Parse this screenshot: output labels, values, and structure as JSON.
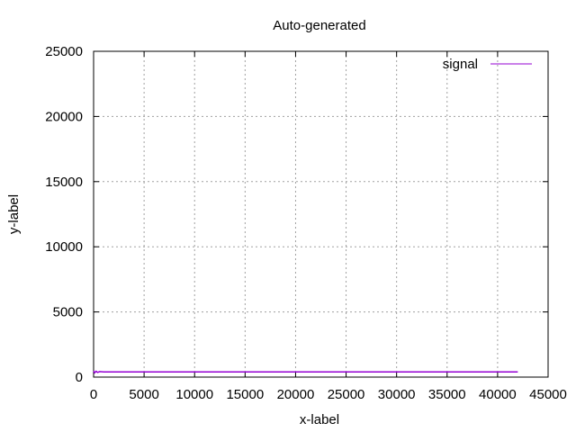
{
  "chart_data": {
    "type": "line",
    "title": "Auto-generated",
    "xlabel": "x-label",
    "ylabel": "y-label",
    "xlim": [
      0,
      45000
    ],
    "ylim": [
      0,
      25000
    ],
    "xticks": [
      0,
      5000,
      10000,
      15000,
      20000,
      25000,
      30000,
      35000,
      40000,
      45000
    ],
    "yticks": [
      0,
      5000,
      10000,
      15000,
      20000,
      25000
    ],
    "grid": true,
    "legend": "top-right",
    "series": [
      {
        "name": "signal",
        "color": "#9400d3",
        "x": [
          0,
          100,
          250,
          400,
          600,
          1000,
          2000,
          5000,
          10000,
          15000,
          20000,
          25000,
          30000,
          35000,
          40000,
          42000
        ],
        "y": [
          480,
          330,
          450,
          360,
          420,
          400,
          400,
          400,
          400,
          400,
          400,
          400,
          400,
          400,
          400,
          400
        ]
      }
    ]
  }
}
